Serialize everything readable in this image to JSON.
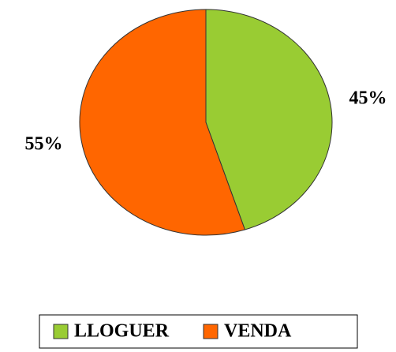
{
  "chart_data": {
    "type": "pie",
    "categories": [
      "LLOGUER",
      "VENDA"
    ],
    "values": [
      45,
      55
    ],
    "value_labels": [
      "45%",
      "55%"
    ],
    "colors": [
      "#99cc33",
      "#ff6600"
    ],
    "legend": "bottom"
  }
}
